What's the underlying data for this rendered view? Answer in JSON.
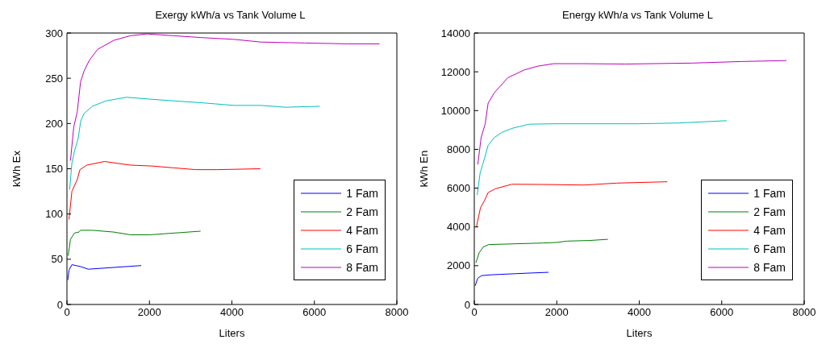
{
  "chart_data": [
    {
      "type": "line",
      "title": "Exergy kWh/a vs Tank Volume L",
      "xlabel": "Liters",
      "ylabel": "kWh Ex",
      "xlim": [
        0,
        8000
      ],
      "xticks": [
        0,
        2000,
        4000,
        6000,
        8000
      ],
      "ylim": [
        0,
        300
      ],
      "yticks": [
        0,
        50,
        100,
        150,
        200,
        250,
        300
      ],
      "grid": false,
      "legend": "bottom right",
      "line_style": "solid",
      "series": [
        {
          "name": "1 Fam",
          "color": "#0000ff",
          "x": [
            20,
            50,
            120,
            320,
            515,
            1800
          ],
          "values": [
            27,
            38,
            44,
            42,
            39,
            43
          ]
        },
        {
          "name": "2 Fam",
          "color": "#008000",
          "x": [
            30,
            85,
            185,
            285,
            335,
            615,
            1140,
            1540,
            2000,
            3240
          ],
          "values": [
            54,
            72,
            79,
            80,
            82,
            82,
            80,
            77,
            77,
            81
          ]
        },
        {
          "name": "4 Fam",
          "color": "#ff0000",
          "x": [
            50,
            120,
            250,
            315,
            480,
            910,
            1540,
            2070,
            2590,
            3120,
            3650,
            4690
          ],
          "values": [
            94,
            125,
            138,
            149,
            154,
            158,
            154,
            153,
            151,
            149,
            149,
            150
          ]
        },
        {
          "name": "6 Fam",
          "color": "#00bfbf",
          "x": [
            65,
            120,
            185,
            270,
            335,
            415,
            615,
            945,
            1440,
            2000,
            2590,
            3250,
            4050,
            4710,
            5300,
            6130
          ],
          "values": [
            127,
            156,
            170,
            183,
            203,
            211,
            219,
            225,
            229,
            227,
            225,
            223,
            220,
            220,
            218,
            219
          ]
        },
        {
          "name": "8 Fam",
          "color": "#bf00bf",
          "x": [
            85,
            165,
            250,
            330,
            415,
            545,
            745,
            1140,
            1540,
            1935,
            2590,
            3250,
            4045,
            4710,
            5760,
            6820,
            7580
          ],
          "values": [
            159,
            196,
            213,
            246,
            258,
            270,
            282,
            292,
            297,
            299,
            297,
            295,
            293,
            290,
            289,
            288,
            288
          ]
        }
      ]
    },
    {
      "type": "line",
      "title": "Energy kWh/a vs Tank Volume L",
      "xlabel": "Liters",
      "ylabel": "kWh En",
      "xlim": [
        0,
        8000
      ],
      "xticks": [
        0,
        2000,
        4000,
        6000,
        8000
      ],
      "ylim": [
        0,
        14000
      ],
      "yticks": [
        0,
        2000,
        4000,
        6000,
        8000,
        10000,
        12000,
        14000
      ],
      "grid": false,
      "legend": "bottom right",
      "line_style": "solid",
      "series": [
        {
          "name": "1 Fam",
          "color": "#0000ff",
          "x": [
            20,
            85,
            180,
            415,
            1010,
            1800
          ],
          "values": [
            960,
            1360,
            1490,
            1530,
            1590,
            1660
          ]
        },
        {
          "name": "2 Fam",
          "color": "#008000",
          "x": [
            40,
            120,
            215,
            350,
            1010,
            1670,
            2000,
            2260,
            2790,
            3240
          ],
          "values": [
            2150,
            2670,
            2960,
            3090,
            3130,
            3170,
            3200,
            3270,
            3300,
            3360
          ]
        },
        {
          "name": "4 Fam",
          "color": "#ff0000",
          "x": [
            50,
            150,
            250,
            335,
            515,
            910,
            1670,
            2660,
            3450,
            4680
          ],
          "values": [
            3990,
            4980,
            5370,
            5770,
            5970,
            6200,
            6190,
            6160,
            6260,
            6330
          ]
        },
        {
          "name": "6 Fam",
          "color": "#00bfbf",
          "x": [
            70,
            140,
            250,
            335,
            480,
            680,
            945,
            1340,
            2000,
            3975,
            4960,
            6120
          ],
          "values": [
            5640,
            6760,
            7550,
            8200,
            8600,
            8890,
            9100,
            9300,
            9320,
            9320,
            9360,
            9480
          ]
        },
        {
          "name": "8 Fam",
          "color": "#bf00bf",
          "x": [
            85,
            165,
            265,
            335,
            480,
            810,
            1205,
            1535,
            1930,
            2660,
            3645,
            5290,
            6480,
            7570
          ],
          "values": [
            7220,
            8600,
            9320,
            10380,
            10900,
            11690,
            12090,
            12290,
            12420,
            12420,
            12400,
            12450,
            12530,
            12580
          ]
        }
      ]
    }
  ]
}
